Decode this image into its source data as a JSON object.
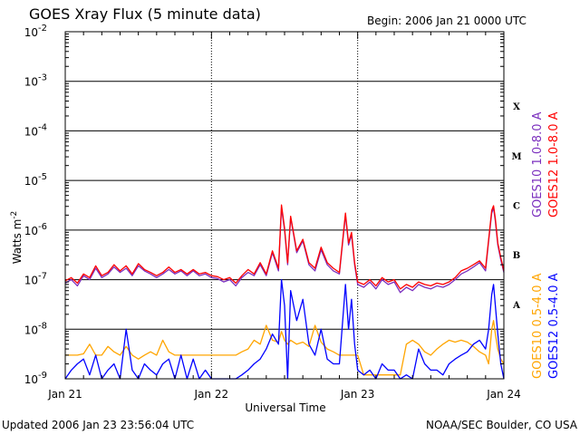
{
  "chart_data": {
    "type": "line",
    "title": "GOES Xray Flux (5 minute data)",
    "begin_label": "Begin:  2006 Jan 21 0000 UTC",
    "xlabel": "Universal Time",
    "ylabel_base": "Watts m",
    "ylabel_sup": "-2",
    "updated": "Updated 2006 Jan 23 23:56:04 UTC",
    "credit": "NOAA/SEC Boulder, CO USA",
    "xlim": [
      0,
      72
    ],
    "ylim_exponent": [
      -9,
      -2
    ],
    "yscale": "log",
    "x_tick_labels": [
      {
        "x": 0,
        "label": "Jan 21"
      },
      {
        "x": 24,
        "label": "Jan 22"
      },
      {
        "x": 48,
        "label": "Jan 23"
      },
      {
        "x": 72,
        "label": "Jan 24"
      }
    ],
    "y_tick_labels": [
      {
        "exp": -2,
        "base": "10",
        "sup": "-2"
      },
      {
        "exp": -3,
        "base": "10",
        "sup": "-3"
      },
      {
        "exp": -4,
        "base": "10",
        "sup": "-4"
      },
      {
        "exp": -5,
        "base": "10",
        "sup": "-5"
      },
      {
        "exp": -6,
        "base": "10",
        "sup": "-6"
      },
      {
        "exp": -7,
        "base": "10",
        "sup": "-7"
      },
      {
        "exp": -8,
        "base": "10",
        "sup": "-8"
      },
      {
        "exp": -9,
        "base": "10",
        "sup": "-9"
      }
    ],
    "flare_classes": [
      {
        "label": "X",
        "exp": -3.5
      },
      {
        "label": "M",
        "exp": -4.5
      },
      {
        "label": "C",
        "exp": -5.5
      },
      {
        "label": "B",
        "exp": -6.5
      },
      {
        "label": "A",
        "exp": -7.5
      }
    ],
    "series": [
      {
        "name": "GOES10 1.0-8.0 A",
        "color": "#7b2fbe",
        "x": [
          0,
          1,
          2,
          3,
          4,
          5,
          6,
          7,
          8,
          9,
          10,
          11,
          12,
          13,
          14,
          15,
          16,
          17,
          18,
          19,
          20,
          21,
          22,
          23,
          24,
          25,
          26,
          27,
          28,
          29,
          30,
          31,
          32,
          33,
          34,
          35,
          35.5,
          36,
          36.5,
          37,
          38,
          39,
          40,
          41,
          42,
          43,
          44,
          45,
          46,
          46.5,
          47,
          47.5,
          48,
          49,
          50,
          51,
          52,
          53,
          54,
          55,
          56,
          57,
          58,
          59,
          60,
          61,
          62,
          63,
          64,
          65,
          66,
          67,
          68,
          69,
          69.5,
          70,
          70.3,
          70.6,
          71,
          71.5,
          72
        ],
        "y": [
          8.5e-08,
          1e-07,
          7.5e-08,
          1.2e-07,
          1e-07,
          1.7e-07,
          1.1e-07,
          1.3e-07,
          1.8e-07,
          1.4e-07,
          1.7e-07,
          1.2e-07,
          1.9e-07,
          1.5e-07,
          1.3e-07,
          1.1e-07,
          1.3e-07,
          1.6e-07,
          1.3e-07,
          1.5e-07,
          1.2e-07,
          1.5e-07,
          1.2e-07,
          1.3e-07,
          1.1e-07,
          1.05e-07,
          9e-08,
          1e-07,
          7.5e-08,
          1.1e-07,
          1.4e-07,
          1.2e-07,
          2e-07,
          1.2e-07,
          3.5e-07,
          1.5e-07,
          2.8e-06,
          1e-06,
          2e-07,
          1.8e-06,
          3.5e-07,
          6e-07,
          2e-07,
          1.5e-07,
          4e-07,
          2e-07,
          1.5e-07,
          1.3e-07,
          2e-06,
          5e-07,
          8e-07,
          2e-07,
          8e-08,
          7e-08,
          9e-08,
          6.5e-08,
          1e-07,
          8e-08,
          9e-08,
          5.5e-08,
          7e-08,
          6e-08,
          8e-08,
          7e-08,
          6.5e-08,
          7.5e-08,
          7e-08,
          8e-08,
          1e-07,
          1.3e-07,
          1.5e-07,
          1.8e-07,
          2.2e-07,
          1.5e-07,
          6e-07,
          2.2e-06,
          2.8e-06,
          1.5e-06,
          5e-07,
          2.5e-07,
          1.4e-07
        ]
      },
      {
        "name": "GOES12 1.0-8.0 A",
        "color": "#ff0000",
        "x": [
          0,
          1,
          2,
          3,
          4,
          5,
          6,
          7,
          8,
          9,
          10,
          11,
          12,
          13,
          14,
          15,
          16,
          17,
          18,
          19,
          20,
          21,
          22,
          23,
          24,
          25,
          26,
          27,
          28,
          29,
          30,
          31,
          32,
          33,
          34,
          35,
          35.5,
          36,
          36.5,
          37,
          38,
          39,
          40,
          41,
          42,
          43,
          44,
          45,
          46,
          46.5,
          47,
          47.5,
          48,
          49,
          50,
          51,
          52,
          53,
          54,
          55,
          56,
          57,
          58,
          59,
          60,
          61,
          62,
          63,
          64,
          65,
          66,
          67,
          68,
          69,
          69.5,
          70,
          70.3,
          70.6,
          71,
          71.5,
          72
        ],
        "y": [
          9.5e-08,
          1.1e-07,
          8.5e-08,
          1.3e-07,
          1.1e-07,
          1.9e-07,
          1.2e-07,
          1.4e-07,
          2e-07,
          1.5e-07,
          1.9e-07,
          1.3e-07,
          2.1e-07,
          1.6e-07,
          1.4e-07,
          1.2e-07,
          1.4e-07,
          1.8e-07,
          1.4e-07,
          1.6e-07,
          1.3e-07,
          1.6e-07,
          1.3e-07,
          1.4e-07,
          1.2e-07,
          1.15e-07,
          1e-07,
          1.1e-07,
          8.5e-08,
          1.2e-07,
          1.6e-07,
          1.3e-07,
          2.2e-07,
          1.3e-07,
          3.8e-07,
          1.7e-07,
          3.2e-06,
          1.1e-06,
          2.2e-07,
          1.9e-06,
          3.8e-07,
          6.5e-07,
          2.2e-07,
          1.7e-07,
          4.5e-07,
          2.2e-07,
          1.7e-07,
          1.4e-07,
          2.2e-06,
          5.5e-07,
          9e-07,
          2.2e-07,
          9e-08,
          8e-08,
          1e-07,
          7.5e-08,
          1.1e-07,
          9e-08,
          1e-07,
          6.5e-08,
          8e-08,
          7e-08,
          9e-08,
          8e-08,
          7.5e-08,
          8.5e-08,
          8e-08,
          9e-08,
          1.1e-07,
          1.5e-07,
          1.7e-07,
          2e-07,
          2.4e-07,
          1.7e-07,
          6.5e-07,
          2.5e-06,
          3.1e-06,
          1.7e-06,
          5.5e-07,
          2.8e-07,
          1.5e-07
        ]
      },
      {
        "name": "GOES10 0.5-4.0 A",
        "color": "#ffa500",
        "x": [
          0,
          1,
          2,
          3,
          4,
          5,
          6,
          7,
          8,
          9,
          10,
          11,
          12,
          13,
          14,
          15,
          16,
          17,
          18,
          19,
          20,
          21,
          22,
          23,
          24,
          25,
          26,
          27,
          28,
          29,
          30,
          31,
          32,
          33,
          34,
          35,
          35.5,
          36,
          36.5,
          37,
          38,
          39,
          40,
          41,
          42,
          43,
          44,
          45,
          46,
          46.5,
          47,
          47.5,
          48,
          49,
          50,
          51,
          52,
          53,
          54,
          55,
          56,
          57,
          58,
          59,
          60,
          61,
          62,
          63,
          64,
          65,
          66,
          67,
          68,
          69,
          69.5,
          70,
          70.3,
          70.6,
          71,
          71.5,
          72
        ],
        "y": [
          3e-09,
          3e-09,
          3e-09,
          3.2e-09,
          5e-09,
          3e-09,
          3e-09,
          4.5e-09,
          3.5e-09,
          3e-09,
          4.5e-09,
          3e-09,
          2.5e-09,
          3e-09,
          3.5e-09,
          3e-09,
          6e-09,
          3.5e-09,
          3e-09,
          3e-09,
          3e-09,
          3e-09,
          3e-09,
          3e-09,
          3e-09,
          3e-09,
          3e-09,
          3e-09,
          3e-09,
          3.5e-09,
          4e-09,
          6e-09,
          5e-09,
          1.2e-08,
          6e-09,
          5.5e-09,
          9e-09,
          6e-09,
          5e-09,
          6e-09,
          5e-09,
          5.5e-09,
          4.5e-09,
          1.2e-08,
          5.5e-09,
          4e-09,
          3.5e-09,
          3e-09,
          3e-09,
          3e-09,
          3e-09,
          3e-09,
          3e-09,
          1.2e-09,
          1.2e-09,
          1.2e-09,
          1.2e-09,
          1.2e-09,
          1.2e-09,
          1.2e-09,
          5e-09,
          6e-09,
          5e-09,
          3.5e-09,
          3e-09,
          4e-09,
          5e-09,
          6e-09,
          5.5e-09,
          6e-09,
          5.5e-09,
          4.5e-09,
          3.5e-09,
          3e-09,
          2e-09,
          1e-08,
          1.5e-08,
          8e-09,
          4e-09,
          2.5e-09,
          2e-09
        ]
      },
      {
        "name": "GOES12 0.5-4.0 A",
        "color": "#0000ff",
        "x": [
          0,
          1,
          2,
          3,
          4,
          5,
          6,
          7,
          8,
          9,
          10,
          11,
          12,
          13,
          14,
          15,
          16,
          17,
          18,
          19,
          20,
          21,
          22,
          23,
          24,
          25,
          26,
          27,
          28,
          29,
          30,
          31,
          32,
          33,
          34,
          35,
          35.5,
          36,
          36.5,
          37,
          38,
          39,
          40,
          41,
          42,
          43,
          44,
          45,
          46,
          46.5,
          47,
          47.5,
          48,
          49,
          50,
          51,
          52,
          53,
          54,
          55,
          56,
          57,
          58,
          59,
          60,
          61,
          62,
          63,
          64,
          65,
          66,
          67,
          68,
          69,
          69.5,
          70,
          70.3,
          70.6,
          71,
          71.5,
          72
        ],
        "y": [
          1e-09,
          1.5e-09,
          2e-09,
          2.5e-09,
          1.2e-09,
          3e-09,
          1e-09,
          1.5e-09,
          2e-09,
          1e-09,
          1e-08,
          1.5e-09,
          1e-09,
          2e-09,
          1.5e-09,
          1.2e-09,
          2e-09,
          2.5e-09,
          1e-09,
          3e-09,
          1e-09,
          2.5e-09,
          1e-09,
          1.5e-09,
          1e-09,
          1e-09,
          1e-09,
          1e-09,
          1e-09,
          1.2e-09,
          1.5e-09,
          2e-09,
          2.5e-09,
          4e-09,
          8e-09,
          5e-09,
          1e-07,
          3e-08,
          1e-09,
          6e-08,
          1.5e-08,
          4e-08,
          5e-09,
          3e-09,
          1e-08,
          2.5e-09,
          2e-09,
          2e-09,
          8e-08,
          1e-08,
          4e-08,
          5e-09,
          1.5e-09,
          1.2e-09,
          1.5e-09,
          1e-09,
          2e-09,
          1.5e-09,
          1.5e-09,
          1e-09,
          1.2e-09,
          1e-09,
          4e-09,
          2e-09,
          1.5e-09,
          1.5e-09,
          1.2e-09,
          2e-09,
          2.5e-09,
          3e-09,
          3.5e-09,
          5e-09,
          6e-09,
          4e-09,
          1e-08,
          5e-08,
          8e-08,
          3e-08,
          8e-09,
          2e-09,
          1e-09
        ]
      }
    ]
  }
}
